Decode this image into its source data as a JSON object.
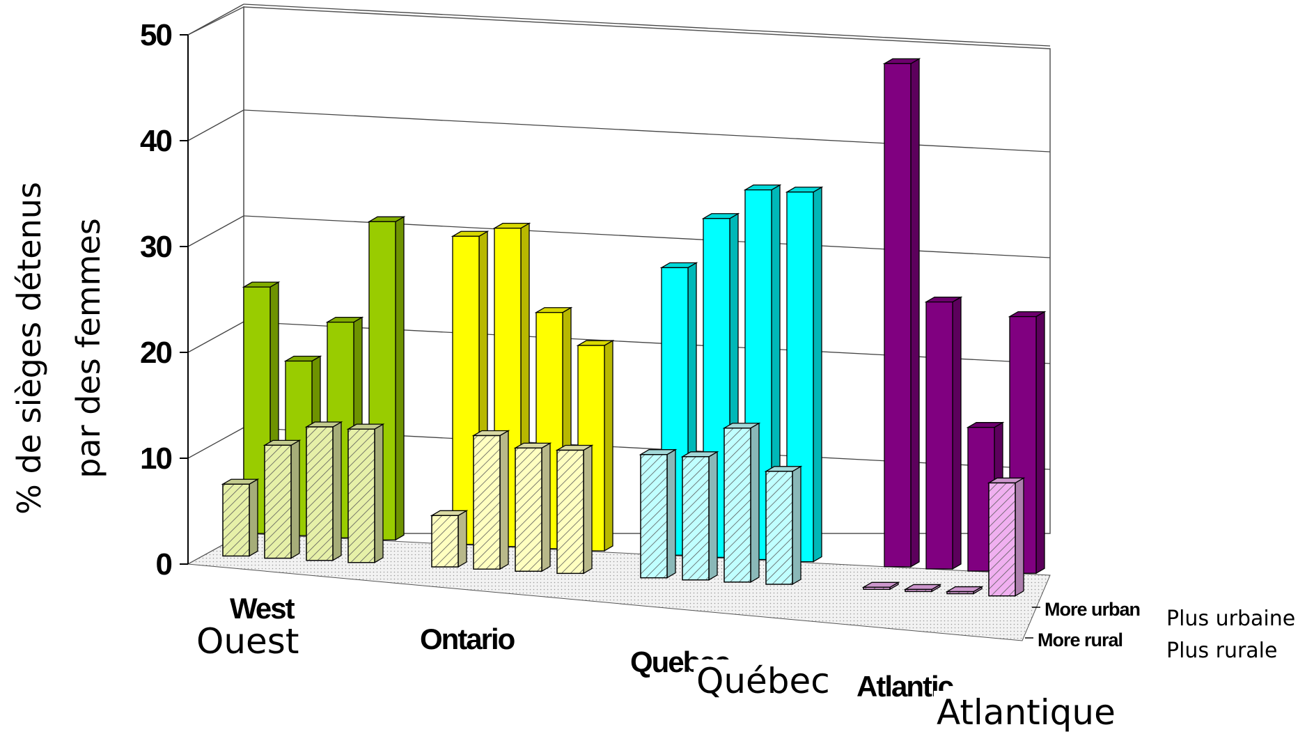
{
  "chart_data": {
    "type": "bar",
    "ylabel_lines": [
      "% de sièges détenus",
      "par des femmes"
    ],
    "yticks": [
      "0",
      "10",
      "20",
      "30",
      "40",
      "50"
    ],
    "ylim": [
      0,
      50
    ],
    "grid": true,
    "categories_en": [
      "West",
      "Ontario",
      "Quebec",
      "Atlantic"
    ],
    "categories_fr": [
      "Ouest",
      "Ontario",
      "Québec",
      "Atlantique"
    ],
    "depth_labels_en": [
      "More urban",
      "More rural"
    ],
    "depth_labels_fr": [
      "Plus urbaine",
      "Plus rurale"
    ],
    "colors": {
      "urban": [
        "#99cc00",
        "#ffff00",
        "#00ffff",
        "#800080"
      ],
      "rural": [
        "#e6f0a8",
        "#ffffc0",
        "#c0ffff",
        "#f0b0f0"
      ]
    },
    "series": [
      {
        "name": "More urban",
        "groups": [
          [
            24,
            17,
            21,
            31
          ],
          [
            30,
            31,
            23,
            20
          ],
          [
            28,
            33,
            36,
            36
          ],
          [
            49,
            26,
            14,
            25
          ]
        ]
      },
      {
        "name": "More rural",
        "groups": [
          [
            7,
            11,
            13,
            13
          ],
          [
            5,
            13,
            12,
            12
          ],
          [
            12,
            12,
            15,
            11
          ],
          [
            0.2,
            0.2,
            0.2,
            11
          ]
        ]
      }
    ]
  }
}
